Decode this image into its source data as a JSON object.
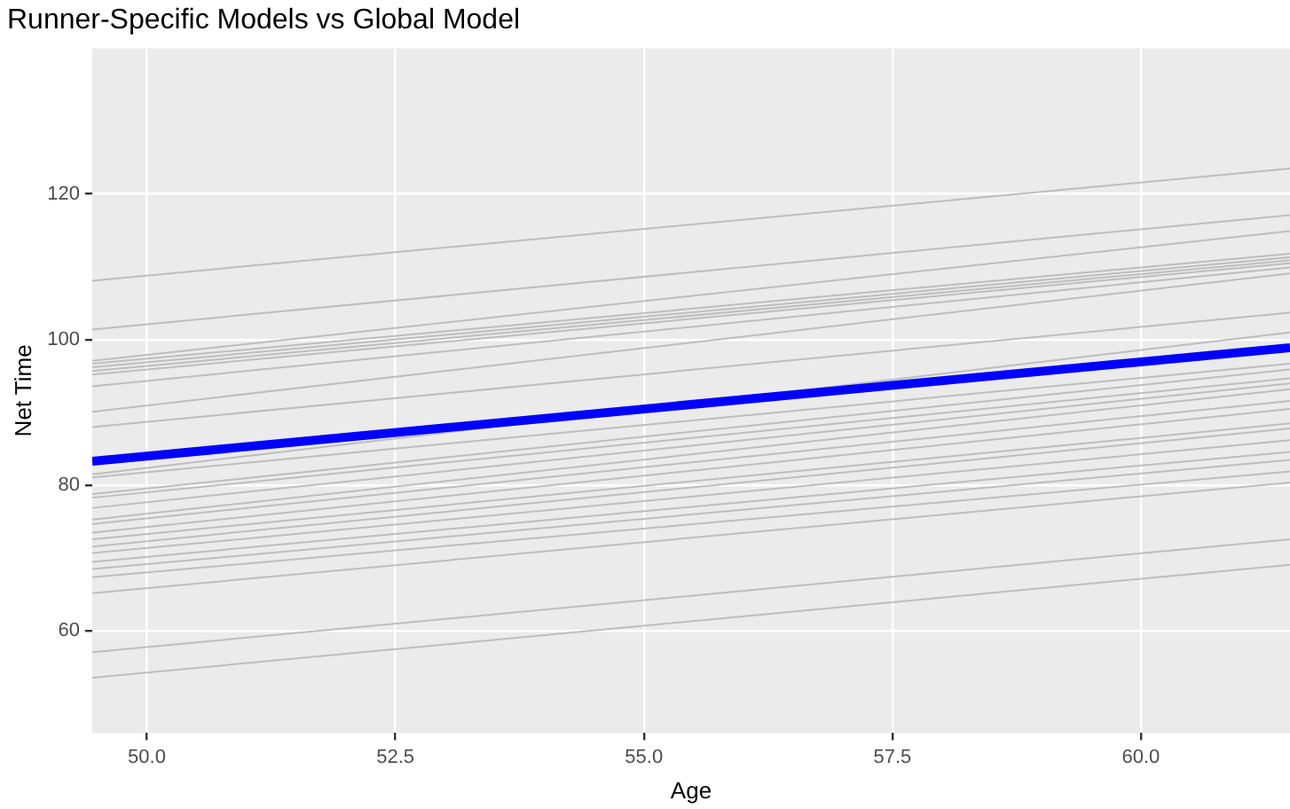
{
  "chart_data": {
    "type": "line",
    "title": "Runner-Specific Models vs Global Model",
    "xlabel": "Age",
    "ylabel": "Net Time",
    "x": [
      49.45,
      61.5
    ],
    "xlim": [
      49.45,
      61.5
    ],
    "xticks": [
      {
        "value": 50,
        "label": "50.0"
      },
      {
        "value": 52.5,
        "label": "52.5"
      },
      {
        "value": 55,
        "label": "55.0"
      },
      {
        "value": 57.5,
        "label": "57.5"
      },
      {
        "value": 60,
        "label": "60.0"
      }
    ],
    "ylim": [
      46,
      140
    ],
    "yticks": [
      60,
      80,
      100,
      120
    ],
    "grid": true,
    "legend": false,
    "marker": "none",
    "line_style": "solid",
    "series": [
      {
        "color": "#bdbdbd",
        "values": [
          108.1,
          123.5
        ]
      },
      {
        "color": "#bdbdbd",
        "values": [
          101.4,
          117.1
        ]
      },
      {
        "color": "#bdbdbd",
        "values": [
          97.1,
          114.9
        ]
      },
      {
        "color": "#bdbdbd",
        "values": [
          96.7,
          111.8
        ]
      },
      {
        "color": "#bdbdbd",
        "values": [
          96.2,
          111.3
        ]
      },
      {
        "color": "#bdbdbd",
        "values": [
          95.7,
          110.9
        ]
      },
      {
        "color": "#bdbdbd",
        "values": [
          95.2,
          110.5
        ]
      },
      {
        "color": "#bdbdbd",
        "values": [
          93.6,
          109.9
        ]
      },
      {
        "color": "#bdbdbd",
        "values": [
          90.1,
          109.1
        ]
      },
      {
        "color": "#bdbdbd",
        "values": [
          88.0,
          103.7
        ]
      },
      {
        "color": "#bdbdbd",
        "values": [
          81.5,
          101.0
        ]
      },
      {
        "color": "#bdbdbd",
        "values": [
          81.1,
          96.7
        ]
      },
      {
        "color": "#bdbdbd",
        "values": [
          78.8,
          95.9
        ]
      },
      {
        "color": "#bdbdbd",
        "values": [
          78.3,
          94.7
        ]
      },
      {
        "color": "#bdbdbd",
        "values": [
          76.9,
          94.0
        ]
      },
      {
        "color": "#bdbdbd",
        "values": [
          75.3,
          93.2
        ]
      },
      {
        "color": "#bdbdbd",
        "values": [
          74.7,
          91.6
        ]
      },
      {
        "color": "#bdbdbd",
        "values": [
          73.5,
          90.5
        ]
      },
      {
        "color": "#bdbdbd",
        "values": [
          72.6,
          88.5
        ]
      },
      {
        "color": "#bdbdbd",
        "values": [
          71.6,
          87.8
        ]
      },
      {
        "color": "#bdbdbd",
        "values": [
          70.7,
          86.2
        ]
      },
      {
        "color": "#bdbdbd",
        "values": [
          69.5,
          84.6
        ]
      },
      {
        "color": "#bdbdbd",
        "values": [
          68.5,
          83.5
        ]
      },
      {
        "color": "#bdbdbd",
        "values": [
          67.4,
          81.9
        ]
      },
      {
        "color": "#bdbdbd",
        "values": [
          65.2,
          80.4
        ]
      },
      {
        "color": "#bdbdbd",
        "values": [
          57.1,
          72.6
        ]
      },
      {
        "color": "#bdbdbd",
        "values": [
          53.6,
          69.1
        ]
      },
      {
        "color": "#0000ff",
        "values": [
          83.3,
          98.9
        ]
      }
    ]
  }
}
